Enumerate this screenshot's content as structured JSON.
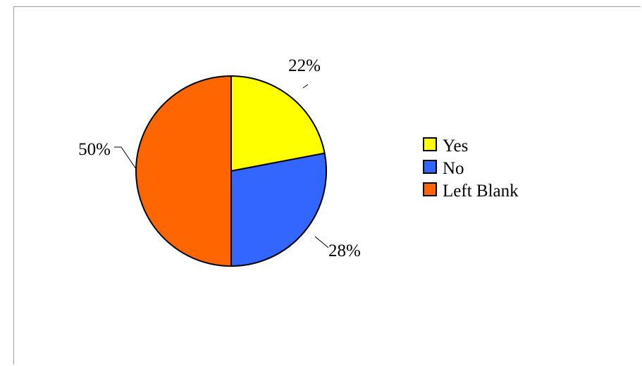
{
  "chart_data": {
    "type": "pie",
    "title": "",
    "categories": [
      "Yes",
      "No",
      "Left Blank"
    ],
    "values": [
      22,
      28,
      50
    ],
    "labels": [
      "22%",
      "28%",
      "50%"
    ],
    "colors": [
      "#ffff00",
      "#3366ff",
      "#ff6600"
    ],
    "legend": {
      "position": "right",
      "entries": [
        "Yes",
        "No",
        "Left Blank"
      ]
    }
  }
}
